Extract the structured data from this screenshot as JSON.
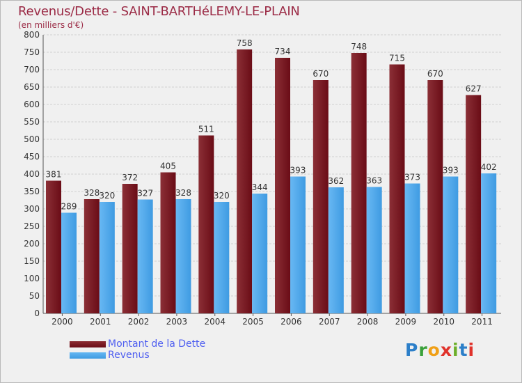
{
  "header": {
    "title": "Revenus/Dette - SAINT-BARTHéLEMY-LE-PLAIN",
    "subtitle": "(en milliers d'€)"
  },
  "colors": {
    "dette": "#6a0c16",
    "revenus": "#3f9be2",
    "title": "#9b2b46",
    "legend_text": "#4e5ef0",
    "grid": "#cfcfcf"
  },
  "chart_data": {
    "type": "bar",
    "title": "Revenus/Dette - SAINT-BARTHéLEMY-LE-PLAIN",
    "ylabel": "(en milliers d'€)",
    "xlabel": "",
    "categories": [
      "2000",
      "2001",
      "2002",
      "2003",
      "2004",
      "2005",
      "2006",
      "2007",
      "2008",
      "2009",
      "2010",
      "2011"
    ],
    "series": [
      {
        "name": "Montant de la Dette",
        "values": [
          381,
          328,
          372,
          405,
          511,
          758,
          734,
          670,
          748,
          715,
          670,
          627
        ]
      },
      {
        "name": "Revenus",
        "values": [
          289,
          320,
          327,
          328,
          320,
          344,
          393,
          362,
          363,
          373,
          393,
          402
        ]
      }
    ],
    "ylim": [
      0,
      800
    ],
    "yticks": [
      0,
      50,
      100,
      150,
      200,
      250,
      300,
      350,
      400,
      450,
      500,
      550,
      600,
      650,
      700,
      750,
      800
    ],
    "grid": true,
    "legend_position": "bottom-left"
  },
  "legend": {
    "items": [
      "Montant de la Dette",
      "Revenus"
    ]
  },
  "logo": {
    "letters": [
      "P",
      "r",
      "o",
      "x",
      "i",
      "t",
      "i"
    ],
    "colors": [
      "#2c7fc9",
      "#3aa13a",
      "#f0a017",
      "#e0322b",
      "#6cae2a",
      "#2c7fc9",
      "#e0322b"
    ]
  }
}
